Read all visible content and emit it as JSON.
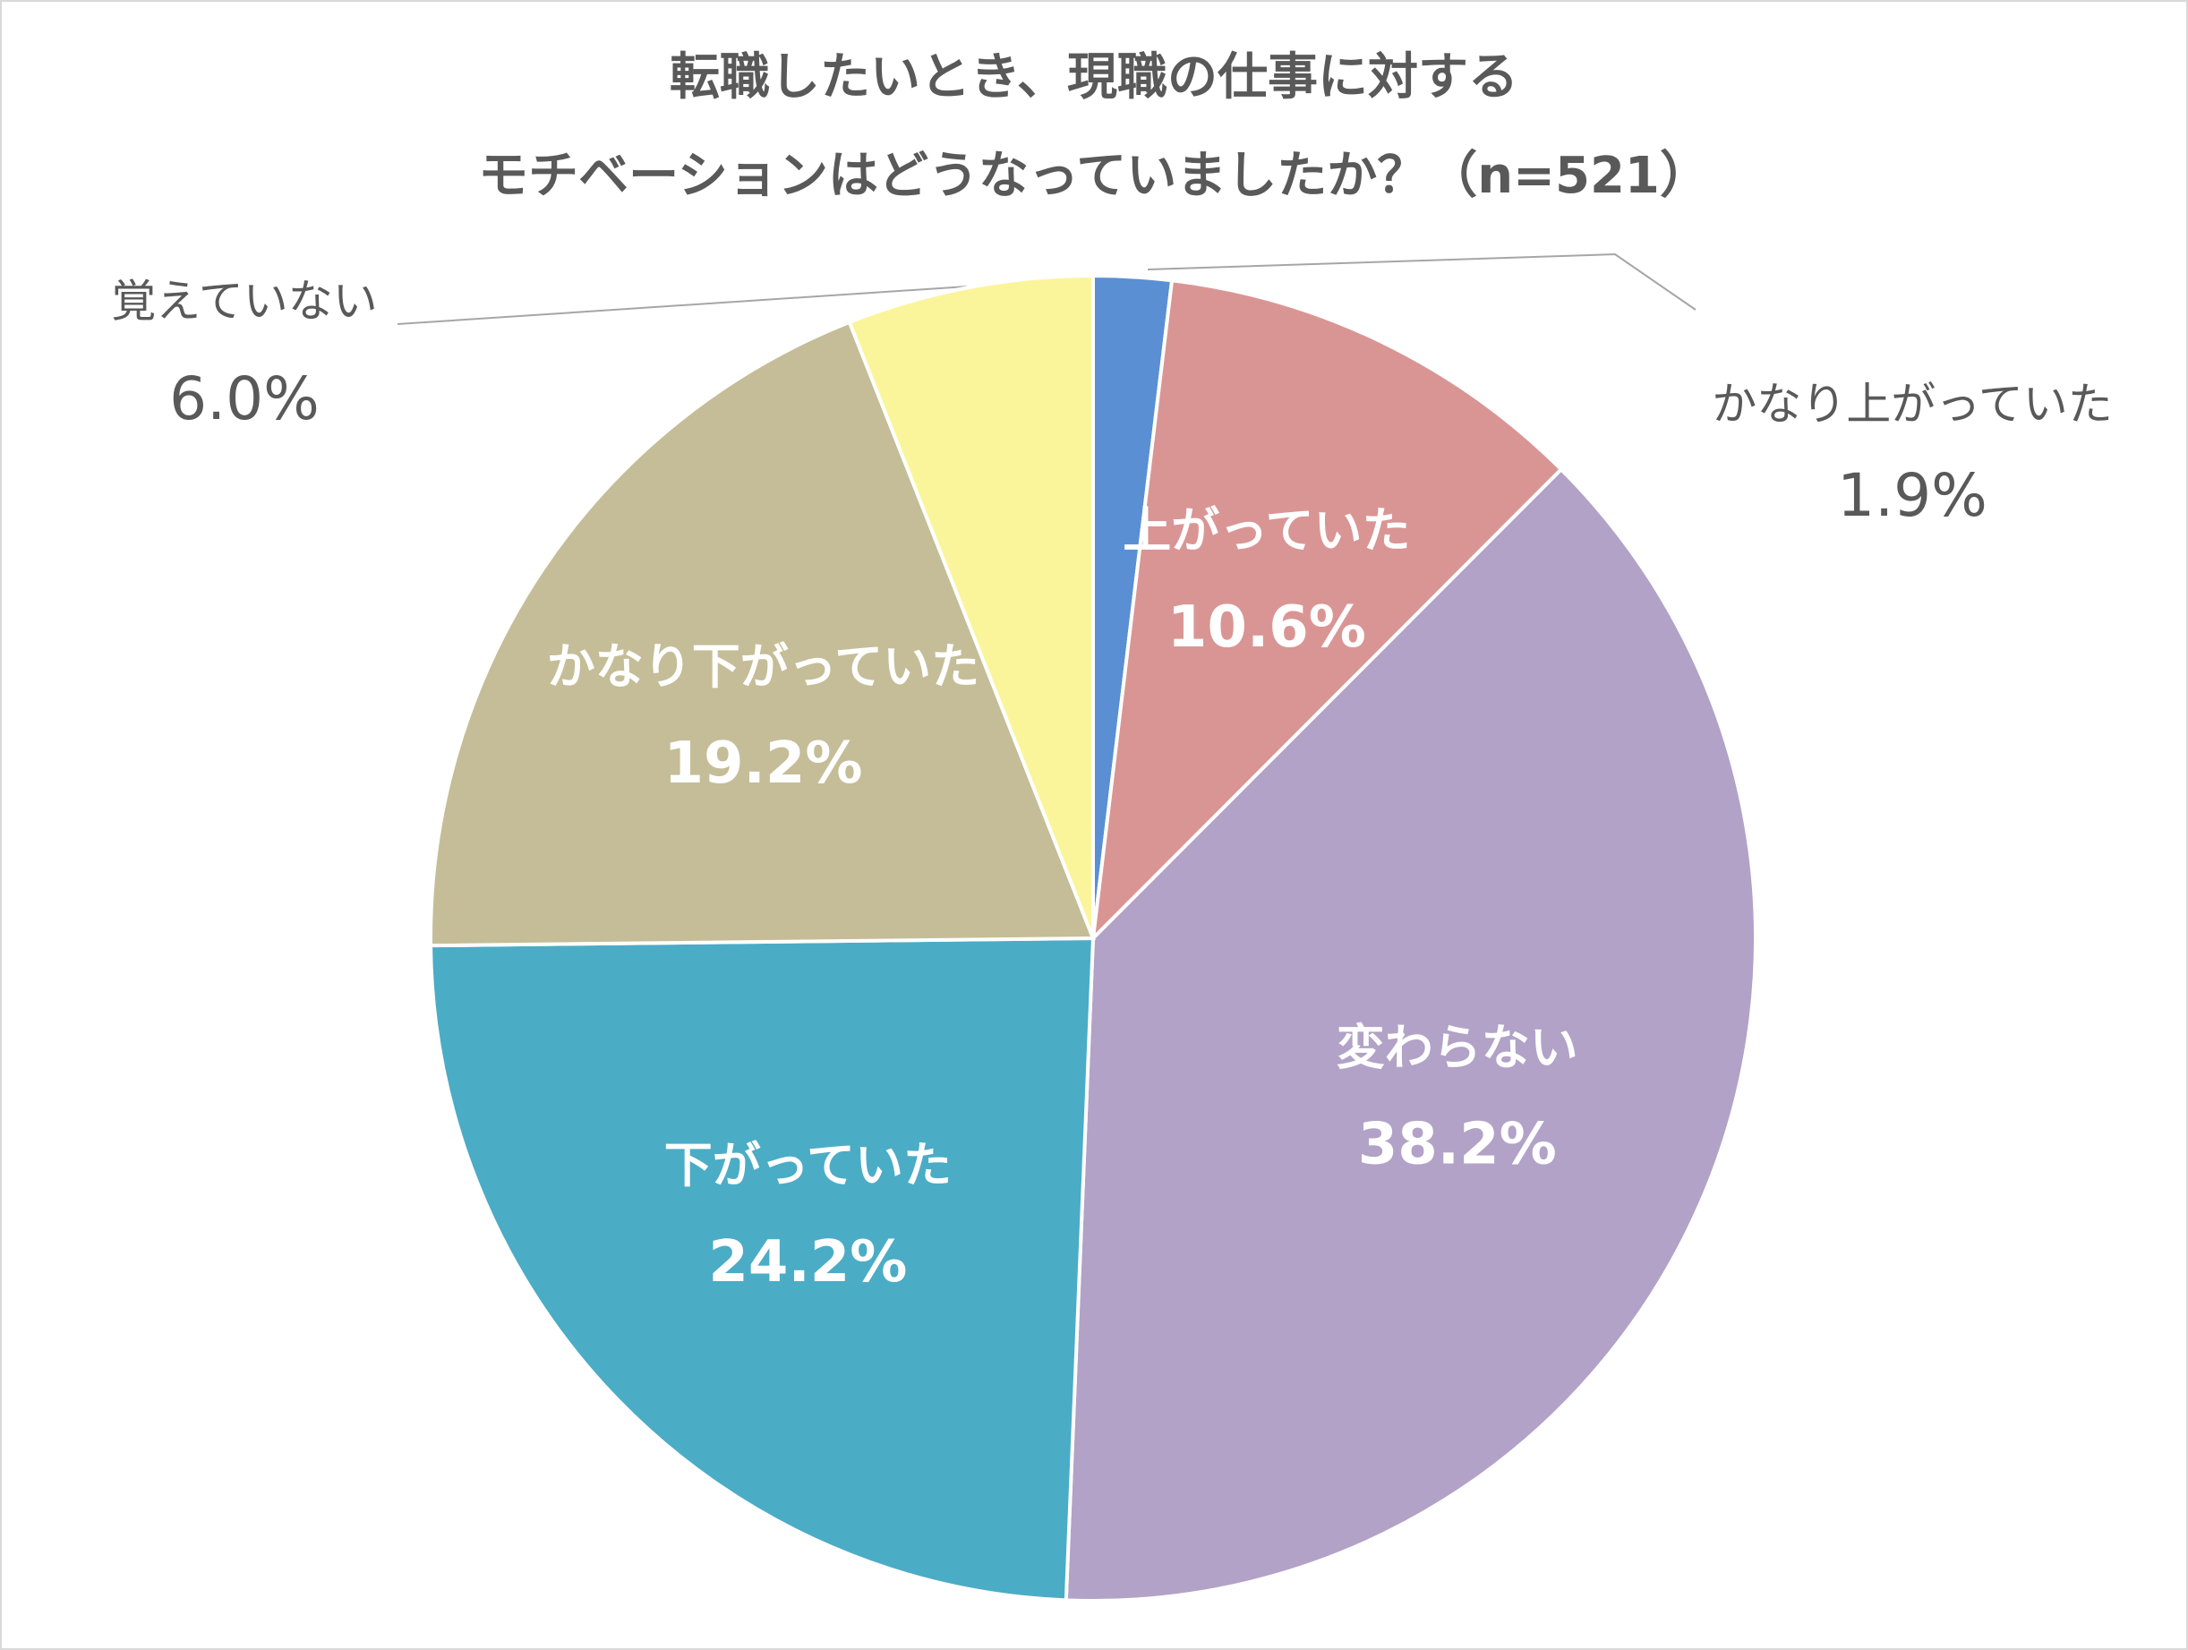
{
  "chart_data": {
    "type": "pie",
    "title": [
      "転職したいとき、現職の仕事に対する",
      "モチベーションはどうなっていましたか？（n=521）"
    ],
    "categories": [
      "かなり上がっていた",
      "上がっていた",
      "変わらない",
      "下がっていた",
      "かなり下がっていた",
      "覚えていない"
    ],
    "values": [
      1.9,
      10.6,
      38.2,
      24.2,
      19.2,
      6.0
    ],
    "value_labels": [
      "1.9%",
      "10.6%",
      "38.2%",
      "24.2%",
      "19.2%",
      "6.0%"
    ],
    "colors": [
      "#5a8fd4",
      "#d99594",
      "#b2a2c7",
      "#4bacc6",
      "#c4bd97",
      "#faf59b"
    ]
  }
}
